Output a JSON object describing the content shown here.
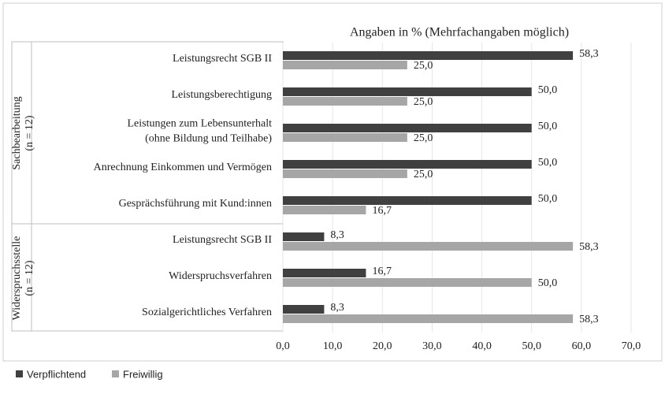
{
  "chart_data": {
    "type": "bar",
    "orientation": "horizontal",
    "axis_title": "Angaben in % (Mehrfachangaben möglich)",
    "groups": [
      {
        "label": [
          "Sachbearbeitung",
          "(n = 12)"
        ],
        "categories": [
          "Leistungsrecht SGB II",
          "Leistungsberechtigung",
          [
            "Leistungen zum Lebensunterhalt",
            "(ohne Bildung und Teilhabe)"
          ],
          "Anrechnung Einkommen und Vermögen",
          "Gesprächsführung mit Kund:innen"
        ]
      },
      {
        "label": [
          "Widerspruchsstelle",
          "(n = 12)"
        ],
        "categories": [
          "Leistungsrecht SGB II",
          "Widerspruchsverfahren",
          "Sozialgerichtliches Verfahren"
        ]
      }
    ],
    "series": [
      {
        "name": "Verpflichtend",
        "color": "#404040",
        "values": [
          58.3,
          50.0,
          50.0,
          50.0,
          50.0,
          8.3,
          16.7,
          8.3
        ],
        "value_labels": [
          "58,3",
          "50,0",
          "50,0",
          "50,0",
          "50,0",
          "8,3",
          "16,7",
          "8,3"
        ]
      },
      {
        "name": "Freiwillig",
        "color": "#a6a6a6",
        "values": [
          25.0,
          25.0,
          25.0,
          25.0,
          16.7,
          58.3,
          50.0,
          58.3
        ],
        "value_labels": [
          "25,0",
          "25,0",
          "25,0",
          "25,0",
          "16,7",
          "58,3",
          "50,0",
          "58,3"
        ]
      }
    ],
    "xlim": [
      0,
      70
    ],
    "xticks": [
      {
        "value": 0,
        "label": "0,0"
      },
      {
        "value": 10,
        "label": "10,0"
      },
      {
        "value": 20,
        "label": "20,0"
      },
      {
        "value": 30,
        "label": "30,0"
      },
      {
        "value": 40,
        "label": "40,0"
      },
      {
        "value": 50,
        "label": "50,0"
      },
      {
        "value": 60,
        "label": "60,0"
      },
      {
        "value": 70,
        "label": "70,0"
      }
    ],
    "grid": true,
    "legend": "bottom-left"
  }
}
